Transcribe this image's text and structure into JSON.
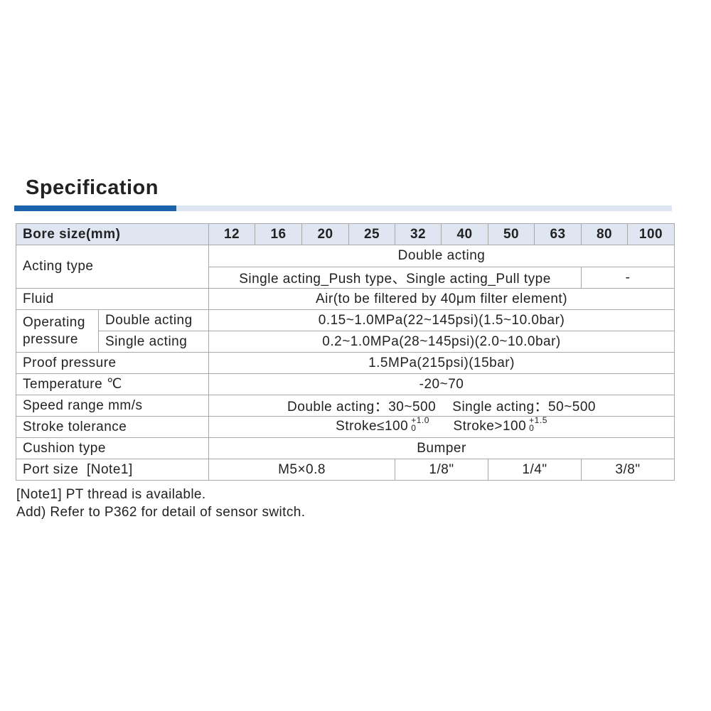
{
  "title": "Specification",
  "colors": {
    "accent": "#1b62ad",
    "header_bg": "#dfe6f2"
  },
  "table": {
    "bore_label": "Bore size(mm)",
    "bores": [
      "12",
      "16",
      "20",
      "25",
      "32",
      "40",
      "50",
      "63",
      "80",
      "100"
    ],
    "acting_label": "Acting type",
    "acting_double": "Double acting",
    "acting_single": "Single acting_Push type、Single acting_Pull type",
    "acting_single_na": "-",
    "fluid_label": "Fluid",
    "fluid": "Air(to be filtered by 40μm filter element)",
    "op_label": "Operating pressure",
    "op_double_label": "Double acting",
    "op_double": "0.15~1.0MPa(22~145psi)(1.5~10.0bar)",
    "op_single_label": "Single acting",
    "op_single": "0.2~1.0MPa(28~145psi)(2.0~10.0bar)",
    "proof_label": "Proof pressure",
    "proof": "1.5MPa(215psi)(15bar)",
    "temp_label": "Temperature ℃",
    "temp": "-20~70",
    "speed_label": "Speed range mm/s",
    "speed": "Double acting：30~500    Single acting：50~500",
    "stroke_label": "Stroke tolerance",
    "stroke1": "Stroke≤100",
    "stroke1_up": "+1.0",
    "stroke1_low": "0",
    "stroke2": "Stroke>100",
    "stroke2_up": "+1.5",
    "stroke2_low": "0",
    "cushion_label": "Cushion type",
    "cushion": "Bumper",
    "port_label": "Port size  [Note1]",
    "ports": [
      "M5×0.8",
      "1/8\"",
      "1/4\"",
      "3/8\""
    ]
  },
  "notes": [
    "[Note1] PT thread is available.",
    "Add) Refer to P362 for detail of sensor switch."
  ]
}
